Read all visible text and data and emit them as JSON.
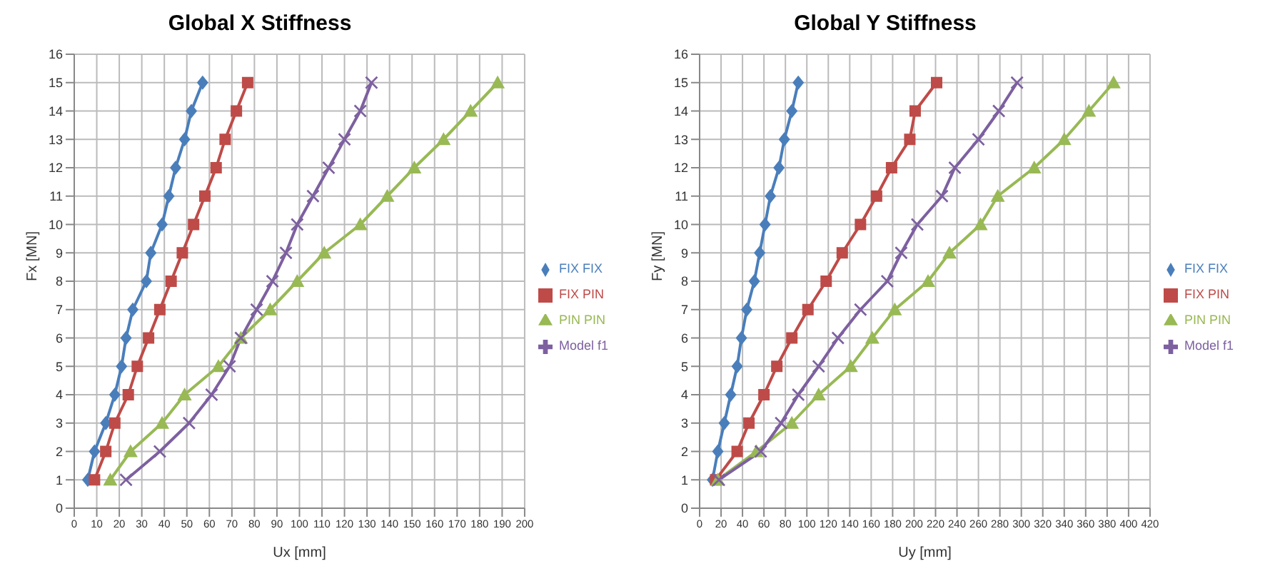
{
  "chart_data": [
    {
      "type": "line",
      "title": "Global X Stiffness",
      "xlabel": "Ux [mm]",
      "ylabel": "Fx [MN]",
      "xlim": [
        0,
        200
      ],
      "xticks": [
        0,
        10,
        20,
        30,
        40,
        50,
        60,
        70,
        80,
        90,
        100,
        110,
        120,
        130,
        140,
        150,
        160,
        170,
        180,
        190,
        200
      ],
      "ylim": [
        0,
        16
      ],
      "yticks": [
        0,
        1,
        2,
        3,
        4,
        5,
        6,
        7,
        8,
        9,
        10,
        11,
        12,
        13,
        14,
        15,
        16
      ],
      "grid": true,
      "legend": "right",
      "series": [
        {
          "name": "FIX FIX",
          "color": "#4a7ebb",
          "marker": "diamond",
          "x": [
            6,
            9,
            14,
            18,
            21,
            23,
            26,
            32,
            34,
            39,
            42,
            45,
            49,
            52,
            57
          ],
          "values": [
            1,
            2,
            3,
            4,
            5,
            6,
            7,
            8,
            9,
            10,
            11,
            12,
            13,
            14,
            15
          ]
        },
        {
          "name": "FIX PIN",
          "color": "#be4b48",
          "marker": "square",
          "x": [
            9,
            14,
            18,
            24,
            28,
            33,
            38,
            43,
            48,
            53,
            58,
            63,
            67,
            72,
            77
          ],
          "values": [
            1,
            2,
            3,
            4,
            5,
            6,
            7,
            8,
            9,
            10,
            11,
            12,
            13,
            14,
            15
          ]
        },
        {
          "name": "PIN PIN",
          "color": "#98b954",
          "marker": "triangle",
          "x": [
            16,
            25,
            39,
            49,
            64,
            74,
            87,
            99,
            111,
            127,
            139,
            151,
            164,
            176,
            188
          ],
          "values": [
            1,
            2,
            3,
            4,
            5,
            6,
            7,
            8,
            9,
            10,
            11,
            12,
            13,
            14,
            15
          ]
        },
        {
          "name": "Model f1",
          "color": "#7d60a0",
          "marker": "cross",
          "x": [
            23,
            38,
            51,
            61,
            69,
            74,
            81,
            88,
            94,
            99,
            106,
            113,
            120,
            127,
            132
          ],
          "values": [
            1,
            2,
            3,
            4,
            5,
            6,
            7,
            8,
            9,
            10,
            11,
            12,
            13,
            14,
            15
          ]
        }
      ]
    },
    {
      "type": "line",
      "title": "Global Y Stiffness",
      "xlabel": "Uy [mm]",
      "ylabel": "Fy [MN]",
      "xlim": [
        0,
        420
      ],
      "xticks": [
        0,
        20,
        40,
        60,
        80,
        100,
        120,
        140,
        160,
        180,
        200,
        220,
        240,
        260,
        280,
        300,
        320,
        340,
        360,
        380,
        400,
        420
      ],
      "ylim": [
        0,
        16
      ],
      "yticks": [
        0,
        1,
        2,
        3,
        4,
        5,
        6,
        7,
        8,
        9,
        10,
        11,
        12,
        13,
        14,
        15,
        16
      ],
      "grid": true,
      "legend": "right",
      "series": [
        {
          "name": "FIX FIX",
          "color": "#4a7ebb",
          "marker": "diamond",
          "x": [
            12,
            17,
            23,
            29,
            35,
            39,
            44,
            51,
            56,
            61,
            66,
            74,
            79,
            86,
            92
          ],
          "values": [
            1,
            2,
            3,
            4,
            5,
            6,
            7,
            8,
            9,
            10,
            11,
            12,
            13,
            14,
            15
          ]
        },
        {
          "name": "FIX PIN",
          "color": "#be4b48",
          "marker": "square",
          "x": [
            15,
            35,
            46,
            60,
            72,
            86,
            101,
            118,
            133,
            150,
            165,
            179,
            196,
            201,
            221
          ],
          "values": [
            1,
            2,
            3,
            4,
            5,
            6,
            7,
            8,
            9,
            10,
            11,
            12,
            13,
            14,
            15
          ]
        },
        {
          "name": "PIN PIN",
          "color": "#98b954",
          "marker": "triangle",
          "x": [
            17,
            53,
            86,
            111,
            141,
            161,
            182,
            213,
            233,
            262,
            278,
            312,
            340,
            363,
            386
          ],
          "values": [
            1,
            2,
            3,
            4,
            5,
            6,
            7,
            8,
            9,
            10,
            11,
            12,
            13,
            14,
            15
          ]
        },
        {
          "name": "Model f1",
          "color": "#7d60a0",
          "marker": "cross",
          "x": [
            18,
            57,
            76,
            92,
            111,
            129,
            150,
            175,
            188,
            203,
            226,
            238,
            260,
            279,
            296
          ],
          "values": [
            1,
            2,
            3,
            4,
            5,
            6,
            7,
            8,
            9,
            10,
            11,
            12,
            13,
            14,
            15
          ]
        }
      ]
    }
  ]
}
